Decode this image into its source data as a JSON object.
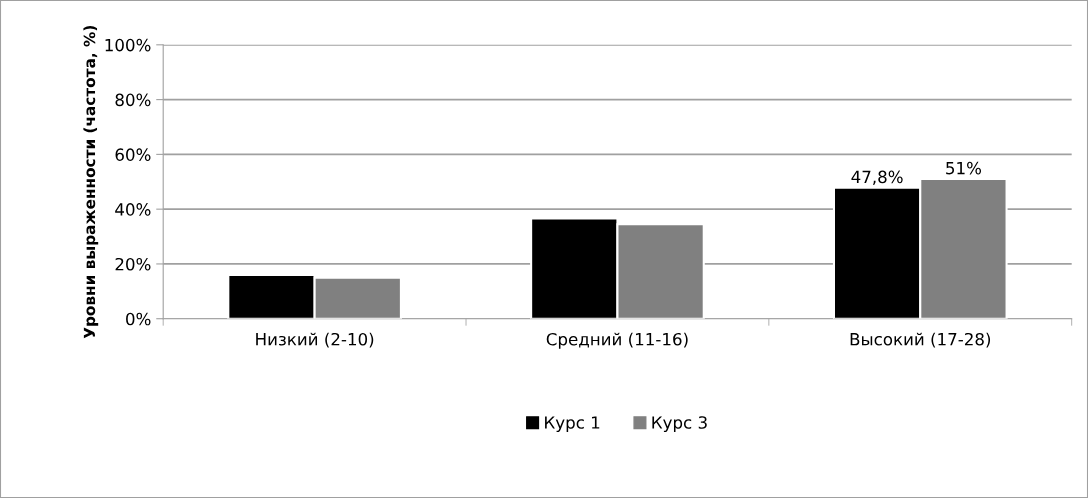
{
  "chart_data": {
    "type": "bar",
    "ylabel": "Уровни выраженности (частота, %)",
    "categories": [
      "Низкий (2-10)",
      "Средний (11-16)",
      "Высокий (17-28)"
    ],
    "series": [
      {
        "name": "Курс 1",
        "color": "#000000",
        "values": [
          16,
          36.6,
          47.8
        ],
        "value_labels": [
          null,
          null,
          "47,8%"
        ]
      },
      {
        "name": "Курс 3",
        "color": "#808080",
        "values": [
          15,
          34.5,
          51
        ],
        "value_labels": [
          null,
          null,
          "51%"
        ]
      }
    ],
    "ylim": [
      0,
      100
    ],
    "yticks": [
      {
        "value": 0,
        "label": "0%"
      },
      {
        "value": 20,
        "label": "20%"
      },
      {
        "value": 40,
        "label": "40%"
      },
      {
        "value": 60,
        "label": "60%"
      },
      {
        "value": 80,
        "label": "80%"
      },
      {
        "value": 100,
        "label": "100%"
      }
    ],
    "grid": "y",
    "legend": "bottom"
  }
}
